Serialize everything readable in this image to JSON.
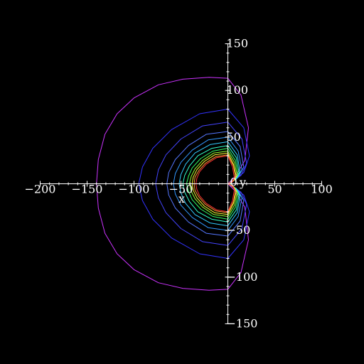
{
  "chart_data": {
    "type": "line",
    "title": "",
    "xlabel": "x",
    "ylabel": "y",
    "origin_label": "0",
    "xlim": [
      -200,
      100
    ],
    "ylim": [
      -150,
      150
    ],
    "grid": false,
    "background": "#000000",
    "axis_color": "#ffffff",
    "x_ticks": [
      {
        "value": -200,
        "label": "−200"
      },
      {
        "value": -150,
        "label": "−150"
      },
      {
        "value": -100,
        "label": "−100"
      },
      {
        "value": -50,
        "label": "−50"
      },
      {
        "value": 50,
        "label": "50"
      },
      {
        "value": 100,
        "label": "100"
      }
    ],
    "y_ticks": [
      {
        "value": 150,
        "label": "150"
      },
      {
        "value": 100,
        "label": "100"
      },
      {
        "value": 50,
        "label": "50"
      },
      {
        "value": -50,
        "label": "−50"
      },
      {
        "value": -100,
        "label": "−100"
      },
      {
        "value": -150,
        "label": "−150"
      }
    ],
    "series": [
      {
        "color": "#cc33ff",
        "x": [
          0,
          -20,
          -48,
          -74,
          -100,
          -118,
          -131,
          -138,
          -140,
          -138,
          -131,
          -118,
          -100,
          -74,
          -48,
          -20,
          0,
          14,
          22,
          18,
          8,
          0,
          8,
          18,
          22,
          14,
          0
        ],
        "y": [
          -113,
          -114,
          -112,
          -106,
          -92,
          -75,
          -53,
          -26,
          0,
          26,
          53,
          75,
          92,
          106,
          112,
          114,
          113,
          95,
          60,
          25,
          8,
          0,
          -8,
          -25,
          -60,
          -95,
          -113
        ]
      },
      {
        "color": "#3333ff",
        "x": [
          0,
          -30,
          -60,
          -80,
          -91,
          -95,
          -91,
          -80,
          -60,
          -30,
          0,
          17,
          23,
          17,
          6,
          0,
          6,
          17,
          23,
          17,
          0
        ],
        "y": [
          -80,
          -75,
          -58,
          -38,
          -18,
          0,
          18,
          38,
          58,
          75,
          80,
          60,
          30,
          12,
          4,
          0,
          -4,
          -12,
          -30,
          -60,
          -80
        ]
      },
      {
        "color": "#4444ff",
        "x": [
          0,
          -27,
          -50,
          -66,
          -74,
          -77,
          -74,
          -66,
          -50,
          -27,
          0,
          15,
          20,
          14,
          5,
          0,
          5,
          14,
          20,
          15,
          0
        ],
        "y": [
          -66,
          -62,
          -48,
          -31,
          -15,
          0,
          15,
          31,
          48,
          62,
          66,
          48,
          22,
          9,
          3,
          0,
          -3,
          -9,
          -22,
          -48,
          -66
        ]
      },
      {
        "color": "#5577ff",
        "x": [
          0,
          -23,
          -42,
          -56,
          -63,
          -65,
          -63,
          -56,
          -42,
          -23,
          0,
          13,
          17,
          11,
          4,
          0,
          4,
          11,
          17,
          13,
          0
        ],
        "y": [
          -56,
          -53,
          -41,
          -26,
          -12,
          0,
          12,
          26,
          41,
          53,
          56,
          40,
          18,
          7,
          2,
          0,
          -2,
          -7,
          -18,
          -40,
          -56
        ]
      },
      {
        "color": "#3399ff",
        "x": [
          0,
          -21,
          -38,
          -50,
          -56,
          -58,
          -56,
          -50,
          -38,
          -21,
          0,
          11,
          15,
          10,
          4,
          0,
          4,
          10,
          15,
          11,
          0
        ],
        "y": [
          -50,
          -47,
          -36,
          -23,
          -11,
          0,
          11,
          23,
          36,
          47,
          50,
          35,
          15,
          6,
          2,
          0,
          -2,
          -6,
          -15,
          -35,
          -50
        ]
      },
      {
        "color": "#33ccff",
        "x": [
          0,
          -19,
          -35,
          -45,
          -50,
          -52,
          -50,
          -45,
          -35,
          -19,
          0,
          10,
          13,
          9,
          3,
          0,
          3,
          9,
          13,
          10,
          0
        ],
        "y": [
          -45,
          -42,
          -33,
          -21,
          -10,
          0,
          10,
          21,
          33,
          42,
          45,
          31,
          13,
          5,
          2,
          0,
          -2,
          -5,
          -13,
          -31,
          -45
        ]
      },
      {
        "color": "#33ffcc",
        "x": [
          0,
          -17,
          -32,
          -41,
          -46,
          -48,
          -46,
          -41,
          -32,
          -17,
          0,
          9,
          12,
          8,
          3,
          0,
          3,
          8,
          12,
          9,
          0
        ],
        "y": [
          -41,
          -38,
          -30,
          -19,
          -9,
          0,
          9,
          19,
          30,
          38,
          41,
          28,
          12,
          5,
          1,
          0,
          -1,
          -5,
          -12,
          -28,
          -41
        ]
      },
      {
        "color": "#33ff66",
        "x": [
          0,
          -16,
          -29,
          -38,
          -42,
          -44,
          -42,
          -38,
          -29,
          -16,
          0,
          8,
          11,
          7,
          3,
          0,
          3,
          7,
          11,
          8,
          0
        ],
        "y": [
          -38,
          -35,
          -27,
          -17,
          -8,
          0,
          8,
          17,
          27,
          35,
          38,
          25,
          10,
          4,
          1,
          0,
          -1,
          -4,
          -10,
          -25,
          -38
        ]
      },
      {
        "color": "#99ff33",
        "x": [
          0,
          -15,
          -27,
          -35,
          -39,
          -41,
          -39,
          -35,
          -27,
          -15,
          0,
          7,
          10,
          7,
          2,
          0,
          2,
          7,
          10,
          7,
          0
        ],
        "y": [
          -35,
          -33,
          -25,
          -16,
          -8,
          0,
          8,
          16,
          25,
          33,
          35,
          23,
          9,
          4,
          1,
          0,
          -1,
          -4,
          -9,
          -23,
          -35
        ]
      },
      {
        "color": "#ffff33",
        "x": [
          0,
          -14,
          -25,
          -33,
          -37,
          -38,
          -37,
          -33,
          -25,
          -14,
          0,
          6,
          9,
          6,
          2,
          0,
          2,
          6,
          9,
          6,
          0
        ],
        "y": [
          -33,
          -31,
          -24,
          -15,
          -7,
          0,
          7,
          15,
          24,
          31,
          33,
          21,
          8,
          3,
          1,
          0,
          -1,
          -3,
          -8,
          -21,
          -33
        ]
      },
      {
        "color": "#ff9933",
        "x": [
          0,
          -13,
          -24,
          -31,
          -35,
          -36,
          -35,
          -31,
          -24,
          -13,
          0,
          6,
          8,
          5,
          2,
          0,
          2,
          5,
          8,
          6,
          0
        ],
        "y": [
          -31,
          -29,
          -22,
          -14,
          -7,
          0,
          7,
          14,
          22,
          29,
          31,
          19,
          7,
          3,
          1,
          0,
          -1,
          -3,
          -7,
          -19,
          -31
        ]
      },
      {
        "color": "#ff3333",
        "x": [
          0,
          -12,
          -23,
          -30,
          -33,
          -34,
          -33,
          -30,
          -23,
          -12,
          0,
          5,
          7,
          5,
          2,
          0,
          2,
          5,
          7,
          5,
          0
        ],
        "y": [
          -30,
          -28,
          -21,
          -13,
          -6,
          0,
          6,
          13,
          21,
          28,
          30,
          18,
          6,
          2,
          1,
          0,
          -1,
          -2,
          -6,
          -18,
          -30
        ]
      }
    ]
  }
}
